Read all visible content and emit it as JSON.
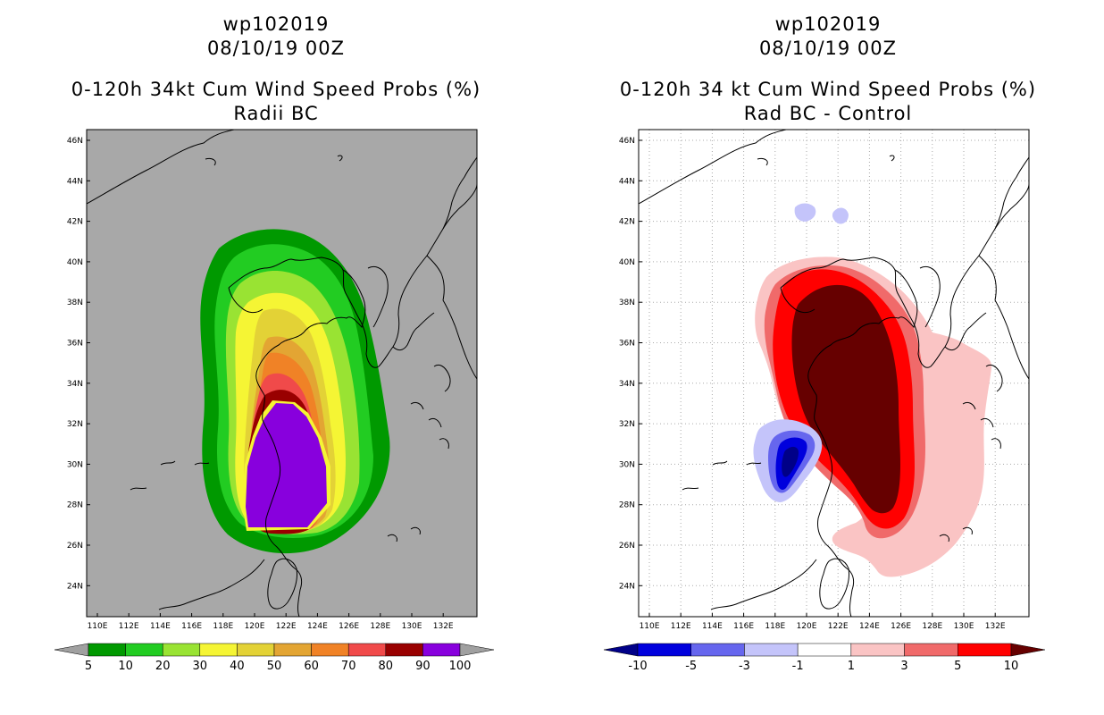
{
  "left": {
    "title_storm": "wp102019",
    "title_date": "08/10/19 00Z",
    "title_product": "0-120h 34kt Cum Wind Speed Probs (%)",
    "title_sub": "Radii BC",
    "colorbar": {
      "labels": [
        "5",
        "10",
        "20",
        "30",
        "40",
        "50",
        "60",
        "70",
        "80",
        "90",
        "100"
      ],
      "colors": [
        "#009900",
        "#22cc22",
        "#99e333",
        "#f5f534",
        "#e3d236",
        "#e3a533",
        "#f08226",
        "#f04a4a",
        "#990000",
        "#8800dd"
      ],
      "under_color": "#a0a0a0",
      "over_color": "#a0a0a0"
    }
  },
  "right": {
    "title_storm": "wp102019",
    "title_date": "08/10/19 00Z",
    "title_product": "0-120h 34 kt Cum Wind Speed Probs (%)",
    "title_sub": "Rad BC - Control",
    "colorbar": {
      "labels": [
        "-10",
        "-5",
        "-3",
        "-1",
        "1",
        "3",
        "5",
        "10"
      ],
      "colors": [
        "#0000dd",
        "#6666ee",
        "#c4c4fa",
        "#ffffff",
        "#fac4c4",
        "#f06a6a",
        "#ff0000"
      ],
      "under_color": "#000088",
      "over_color": "#660000"
    }
  },
  "axes": {
    "lat_labels": [
      "46N",
      "44N",
      "42N",
      "40N",
      "38N",
      "36N",
      "34N",
      "32N",
      "30N",
      "28N",
      "26N",
      "24N"
    ],
    "lon_labels": [
      "110E",
      "112E",
      "114E",
      "116E",
      "118E",
      "120E",
      "122E",
      "124E",
      "126E",
      "128E",
      "130E",
      "132E"
    ]
  },
  "colors": {
    "left_background": "#a8a8a8",
    "right_background": "#ffffff",
    "coast": "#000000",
    "grid": "#aaaaaa"
  }
}
